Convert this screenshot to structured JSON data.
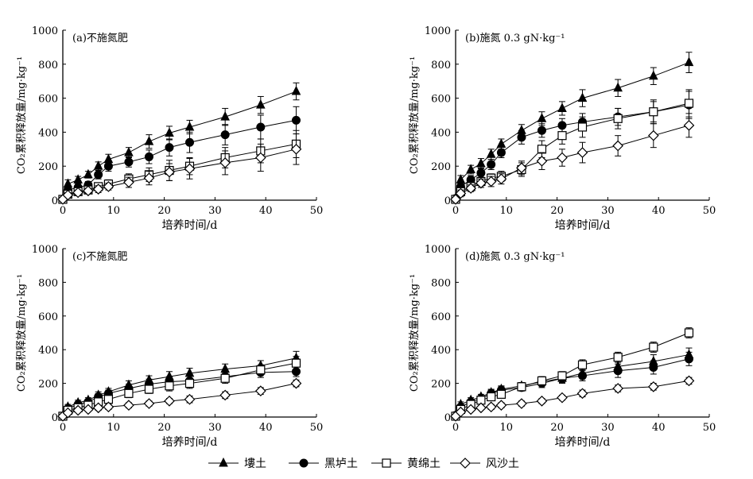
{
  "legend": [
    {
      "label": "塿土",
      "marker": "triangle-filled"
    },
    {
      "label": "黑垆土",
      "marker": "circle-filled"
    },
    {
      "label": "黄绵土",
      "marker": "square-open"
    },
    {
      "label": "风沙土",
      "marker": "diamond-open"
    }
  ],
  "chart_data": [
    {
      "type": "line",
      "title": "(a)不施氮肥",
      "xlabel": "培养时间/d",
      "ylabel": "CO₂累积释放量/mg·kg⁻¹",
      "xlim": [
        0,
        50
      ],
      "ylim": [
        0,
        1000
      ],
      "xticks": [
        0,
        10,
        20,
        30,
        40,
        50
      ],
      "yticks": [
        0,
        200,
        400,
        600,
        800,
        1000
      ],
      "x": [
        0,
        1,
        3,
        5,
        7,
        9,
        13,
        17,
        21,
        25,
        32,
        39,
        46
      ],
      "series": [
        {
          "name": "塿土",
          "marker": "triangle-filled",
          "values": [
            5,
            95,
            120,
            150,
            200,
            240,
            280,
            345,
            395,
            430,
            490,
            560,
            640
          ],
          "errors": [
            10,
            25,
            20,
            20,
            25,
            30,
            30,
            40,
            40,
            40,
            50,
            50,
            50
          ]
        },
        {
          "name": "黑垆土",
          "marker": "circle-filled",
          "values": [
            5,
            60,
            75,
            90,
            150,
            200,
            225,
            255,
            310,
            340,
            385,
            430,
            470
          ],
          "errors": [
            10,
            20,
            20,
            20,
            25,
            30,
            30,
            40,
            50,
            60,
            60,
            70,
            80
          ]
        },
        {
          "name": "黄绵土",
          "marker": "square-open",
          "values": [
            5,
            35,
            50,
            60,
            80,
            95,
            125,
            150,
            175,
            200,
            250,
            290,
            330
          ],
          "errors": [
            10,
            15,
            15,
            15,
            20,
            25,
            30,
            40,
            60,
            50,
            60,
            70,
            80
          ]
        },
        {
          "name": "风沙土",
          "marker": "diamond-open",
          "values": [
            5,
            30,
            45,
            55,
            65,
            80,
            105,
            130,
            165,
            185,
            220,
            250,
            300
          ],
          "errors": [
            10,
            15,
            15,
            15,
            20,
            20,
            30,
            40,
            50,
            60,
            70,
            80,
            90
          ]
        }
      ]
    },
    {
      "type": "line",
      "title": "(b)施氮 0.3 gN·kg⁻¹",
      "xlabel": "培养时间/d",
      "ylabel": "CO₂累积释放量/mg·kg⁻¹",
      "xlim": [
        0,
        50
      ],
      "ylim": [
        0,
        1000
      ],
      "xticks": [
        0,
        10,
        20,
        30,
        40,
        50
      ],
      "yticks": [
        0,
        200,
        400,
        600,
        800,
        1000
      ],
      "x": [
        0,
        1,
        3,
        5,
        7,
        9,
        13,
        17,
        21,
        25,
        32,
        39,
        46
      ],
      "series": [
        {
          "name": "塿土",
          "marker": "triangle-filled",
          "values": [
            10,
            120,
            180,
            215,
            270,
            330,
            410,
            480,
            540,
            600,
            660,
            730,
            810
          ],
          "errors": [
            15,
            25,
            25,
            30,
            30,
            30,
            35,
            40,
            40,
            50,
            50,
            50,
            60
          ]
        },
        {
          "name": "黑垆土",
          "marker": "circle-filled",
          "values": [
            10,
            80,
            120,
            160,
            210,
            280,
            370,
            410,
            440,
            460,
            490,
            520,
            560
          ],
          "errors": [
            15,
            25,
            25,
            30,
            30,
            30,
            40,
            40,
            40,
            50,
            50,
            60,
            80
          ]
        },
        {
          "name": "黄绵土",
          "marker": "square-open",
          "values": [
            5,
            50,
            80,
            110,
            130,
            140,
            180,
            300,
            380,
            430,
            480,
            520,
            570
          ],
          "errors": [
            10,
            20,
            20,
            25,
            25,
            30,
            40,
            50,
            50,
            60,
            60,
            70,
            80
          ]
        },
        {
          "name": "风沙土",
          "marker": "diamond-open",
          "values": [
            5,
            40,
            70,
            100,
            110,
            125,
            190,
            230,
            250,
            280,
            320,
            380,
            440
          ],
          "errors": [
            10,
            20,
            20,
            25,
            30,
            30,
            40,
            50,
            50,
            60,
            60,
            70,
            70
          ]
        }
      ]
    },
    {
      "type": "line",
      "title": "(c)不施氮肥",
      "xlabel": "培养时间/d",
      "ylabel": "CO₂累积释放量/mg·kg⁻¹",
      "xlim": [
        0,
        50
      ],
      "ylim": [
        0,
        1000
      ],
      "xticks": [
        0,
        10,
        20,
        30,
        40,
        50
      ],
      "yticks": [
        0,
        200,
        400,
        600,
        800,
        1000
      ],
      "x": [
        0,
        1,
        3,
        5,
        7,
        9,
        13,
        17,
        21,
        25,
        32,
        39,
        46
      ],
      "series": [
        {
          "name": "塿土",
          "marker": "triangle-filled",
          "values": [
            5,
            60,
            85,
            100,
            130,
            150,
            190,
            220,
            240,
            260,
            285,
            305,
            350
          ],
          "errors": [
            10,
            15,
            15,
            15,
            20,
            20,
            25,
            25,
            30,
            30,
            30,
            30,
            40
          ]
        },
        {
          "name": "黑垆土",
          "marker": "circle-filled",
          "values": [
            5,
            50,
            75,
            90,
            120,
            140,
            170,
            195,
            210,
            215,
            240,
            265,
            270
          ],
          "errors": [
            10,
            15,
            15,
            15,
            20,
            20,
            25,
            30,
            30,
            30,
            30,
            30,
            30
          ]
        },
        {
          "name": "黄绵土",
          "marker": "square-open",
          "values": [
            5,
            40,
            55,
            70,
            90,
            105,
            140,
            165,
            185,
            200,
            230,
            280,
            320
          ],
          "errors": [
            10,
            15,
            15,
            15,
            20,
            20,
            25,
            25,
            30,
            30,
            30,
            30,
            40
          ]
        },
        {
          "name": "风沙土",
          "marker": "diamond-open",
          "values": [
            5,
            25,
            40,
            45,
            55,
            60,
            70,
            80,
            95,
            105,
            130,
            155,
            200
          ],
          "errors": [
            10,
            10,
            10,
            10,
            15,
            15,
            15,
            15,
            15,
            20,
            20,
            20,
            20
          ]
        }
      ]
    },
    {
      "type": "line",
      "title": "(d)施氮 0.3 gN·kg⁻¹",
      "xlabel": "培养时间/d",
      "ylabel": "CO₂累积释放量/mg·kg⁻¹",
      "xlim": [
        0,
        50
      ],
      "ylim": [
        0,
        1000
      ],
      "xticks": [
        0,
        10,
        20,
        30,
        40,
        50
      ],
      "yticks": [
        0,
        200,
        400,
        600,
        800,
        1000
      ],
      "x": [
        0,
        1,
        3,
        5,
        7,
        9,
        13,
        17,
        21,
        25,
        32,
        39,
        46
      ],
      "series": [
        {
          "name": "塿土",
          "marker": "triangle-filled",
          "values": [
            10,
            75,
            100,
            120,
            145,
            165,
            185,
            210,
            230,
            260,
            300,
            330,
            370
          ],
          "errors": [
            10,
            15,
            15,
            15,
            20,
            20,
            20,
            25,
            25,
            30,
            40,
            40,
            40
          ]
        },
        {
          "name": "黑垆土",
          "marker": "circle-filled",
          "values": [
            10,
            60,
            90,
            110,
            140,
            160,
            175,
            200,
            230,
            245,
            275,
            295,
            345
          ],
          "errors": [
            10,
            15,
            15,
            15,
            20,
            20,
            20,
            25,
            30,
            30,
            40,
            40,
            40
          ]
        },
        {
          "name": "黄绵土",
          "marker": "square-open",
          "values": [
            5,
            45,
            75,
            100,
            120,
            135,
            180,
            215,
            245,
            310,
            355,
            415,
            500
          ],
          "errors": [
            10,
            15,
            15,
            15,
            20,
            20,
            25,
            25,
            25,
            30,
            30,
            30,
            30
          ]
        },
        {
          "name": "风沙土",
          "marker": "diamond-open",
          "values": [
            5,
            30,
            45,
            55,
            60,
            70,
            80,
            95,
            115,
            140,
            170,
            180,
            215
          ],
          "errors": [
            10,
            10,
            10,
            10,
            15,
            15,
            15,
            15,
            15,
            20,
            20,
            20,
            20
          ]
        }
      ]
    }
  ]
}
